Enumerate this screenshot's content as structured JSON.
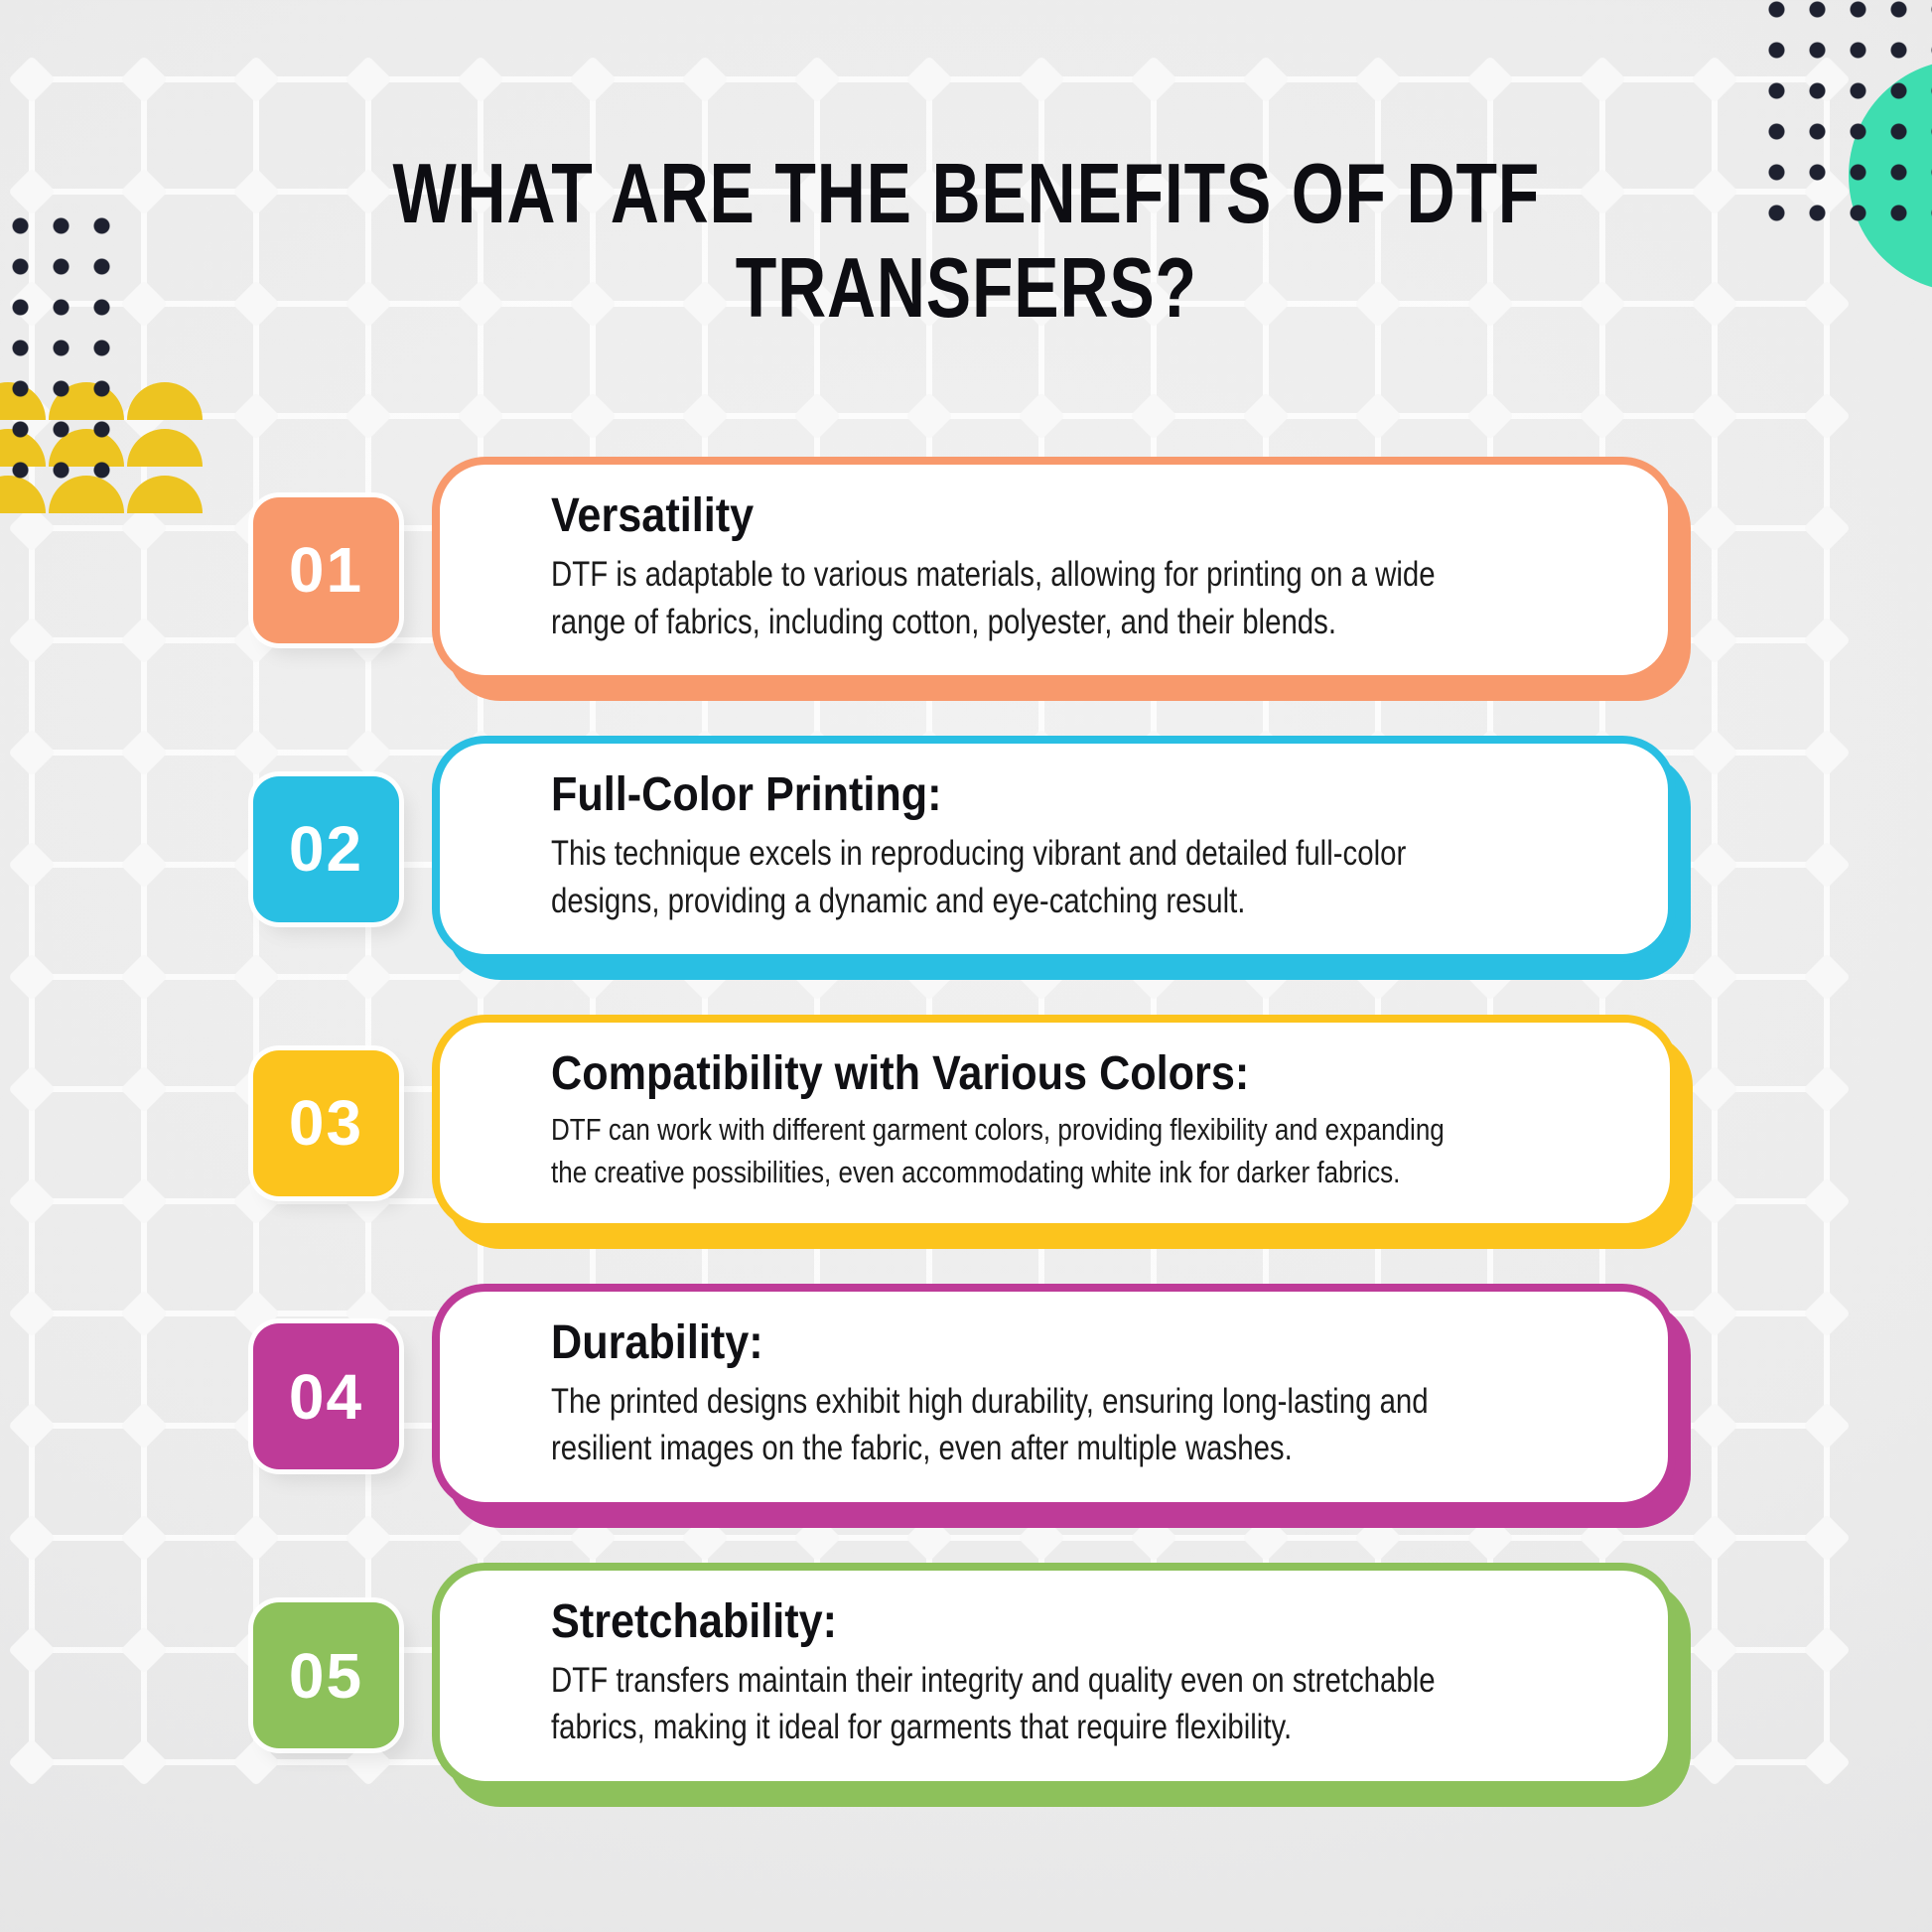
{
  "page": {
    "title": "WHAT ARE THE BENEFITS OF DTF\nTRANSFERS?",
    "title_color": "#0d0d12",
    "background_color": "#ebebeb"
  },
  "items": [
    {
      "number": "01",
      "color": "#F8996C",
      "heading": "Versatility",
      "body": "DTF is adaptable to various materials, allowing for printing on a wide\nrange of fabrics, including cotton, polyester, and their blends."
    },
    {
      "number": "02",
      "color": "#29BFE3",
      "heading": "Full-Color Printing:",
      "body": "This technique excels in reproducing vibrant and detailed full-color\ndesigns, providing a dynamic and eye-catching result."
    },
    {
      "number": "03",
      "color": "#FCC41D",
      "heading": "Compatibility with Various Colors:",
      "body": "DTF can work with different garment colors, providing flexibility and expanding\nthe creative possibilities, even accommodating white ink for darker fabrics."
    },
    {
      "number": "04",
      "color": "#BE3B98",
      "heading": "Durability:",
      "body": "The printed designs exhibit high durability, ensuring long-lasting and\nresilient images on the fabric, even after multiple washes."
    },
    {
      "number": "05",
      "color": "#8DC15B",
      "heading": "Stretchability:",
      "body": "DTF transfers maintain their integrity and quality even on stretchable\nfabrics, making it ideal for garments that require flexibility."
    }
  ],
  "decor": {
    "dot_color": "#1E2130",
    "scallop_color": "#EDC421",
    "circle_color": "#3EDDB0",
    "card_background": "#FFFFFF"
  }
}
